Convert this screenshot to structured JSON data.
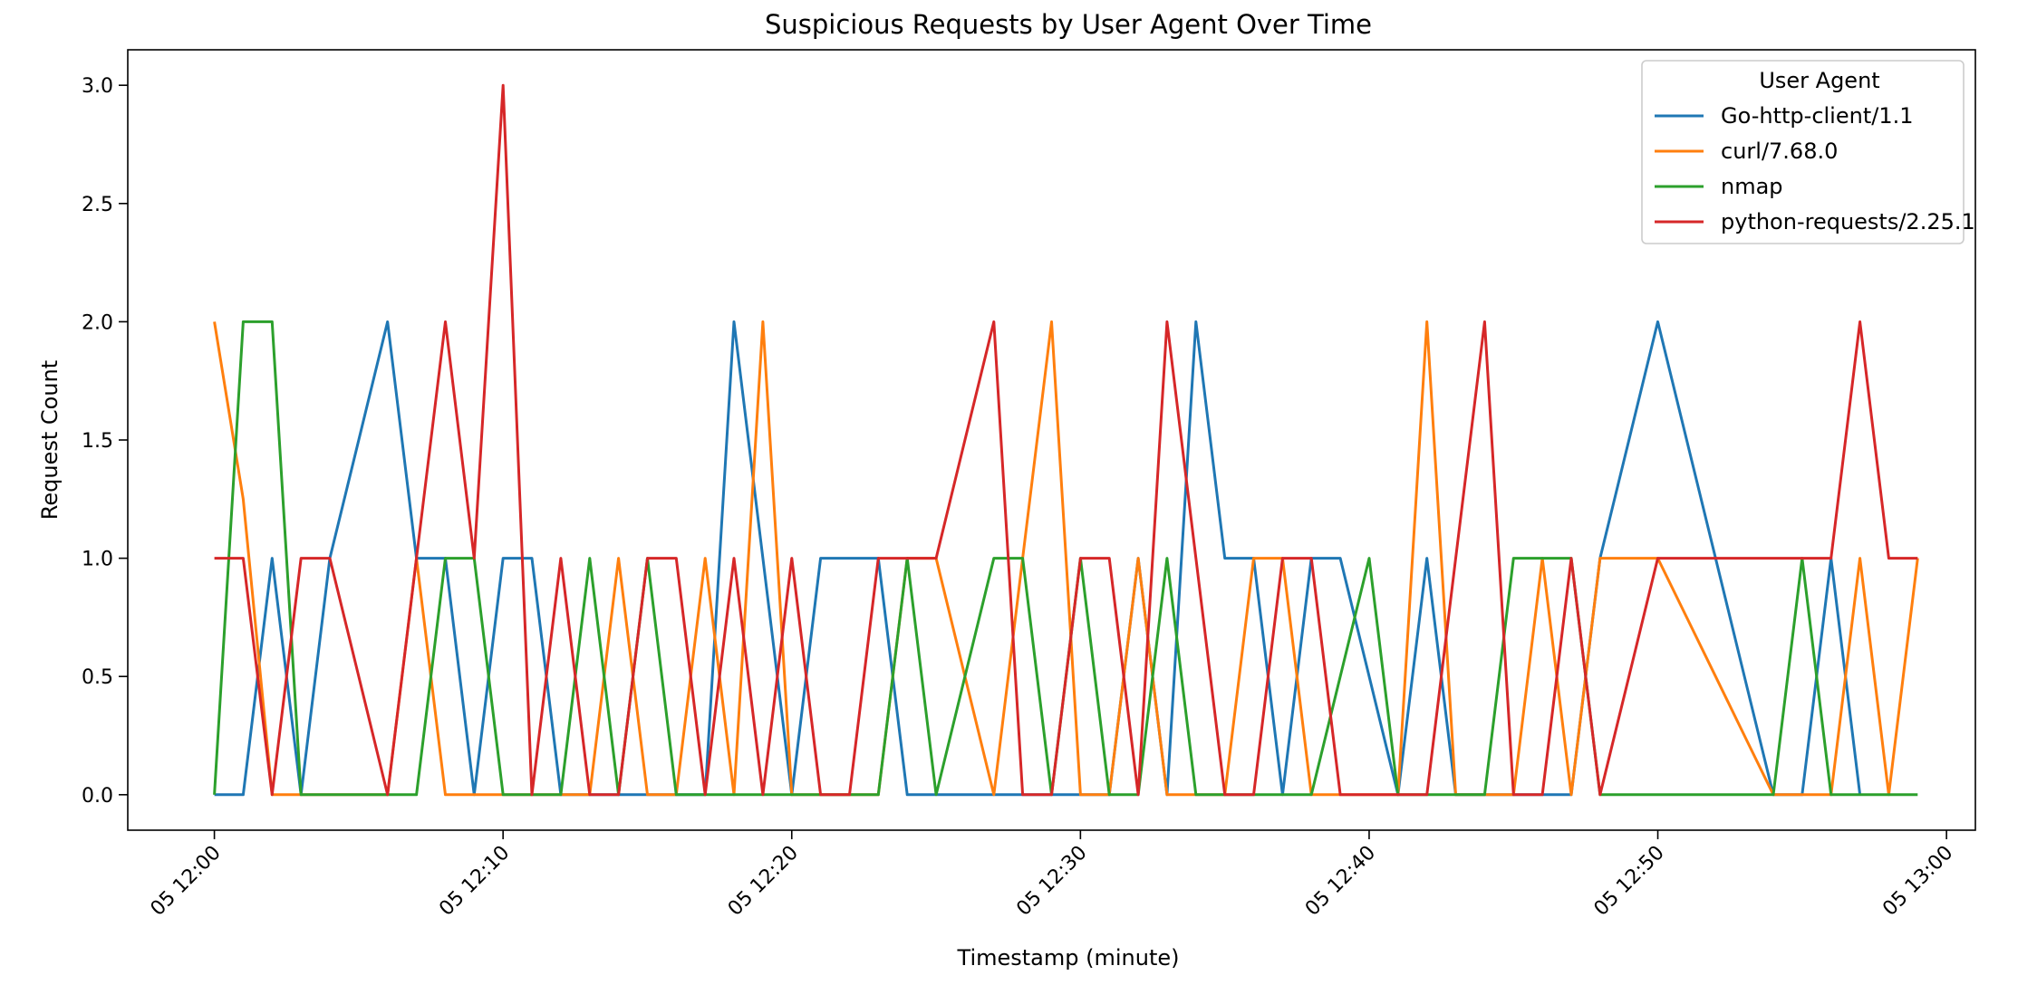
{
  "chart_data": {
    "type": "line",
    "title": "Suspicious Requests by User Agent Over Time",
    "xlabel": "Timestamp (minute)",
    "ylabel": "Request Count",
    "x_unit": "minute",
    "x_start": "05 12:00",
    "x": [
      "05 12:00",
      "05 12:01",
      "05 12:02",
      "05 12:03",
      "05 12:04",
      "05 12:05",
      "05 12:06",
      "05 12:07",
      "05 12:08",
      "05 12:09",
      "05 12:10",
      "05 12:11",
      "05 12:12",
      "05 12:13",
      "05 12:14",
      "05 12:15",
      "05 12:16",
      "05 12:17",
      "05 12:18",
      "05 12:19",
      "05 12:20",
      "05 12:21",
      "05 12:22",
      "05 12:23",
      "05 12:24",
      "05 12:25",
      "05 12:26",
      "05 12:27",
      "05 12:28",
      "05 12:29",
      "05 12:30",
      "05 12:31",
      "05 12:32",
      "05 12:33",
      "05 12:34",
      "05 12:35",
      "05 12:36",
      "05 12:37",
      "05 12:38",
      "05 12:39",
      "05 12:40",
      "05 12:41",
      "05 12:42",
      "05 12:43",
      "05 12:44",
      "05 12:45",
      "05 12:46",
      "05 12:47",
      "05 12:48",
      "05 12:49",
      "05 12:50",
      "05 12:51",
      "05 12:52",
      "05 12:53",
      "05 12:54",
      "05 12:55",
      "05 12:56",
      "05 12:57",
      "05 12:58",
      "05 12:59"
    ],
    "xlim": [
      "05 11:57",
      "05 13:01"
    ],
    "ylim": [
      -0.15,
      3.15
    ],
    "x_ticks": [
      "05 12:00",
      "05 12:10",
      "05 12:20",
      "05 12:30",
      "05 12:40",
      "05 12:50",
      "05 13:00"
    ],
    "y_ticks": [
      "0.0",
      "0.5",
      "1.0",
      "1.5",
      "2.0",
      "2.5",
      "3.0"
    ],
    "grid": false,
    "legend": {
      "title": "User Agent",
      "position": "top-right"
    },
    "series": [
      {
        "name": "Go-http-client/1.1",
        "color": "#1f77b4",
        "values": [
          0,
          0,
          1,
          0,
          1,
          1.5,
          2,
          1,
          1,
          0,
          1,
          1,
          0,
          0,
          0,
          0,
          0,
          0,
          2,
          1,
          0,
          1,
          1,
          1,
          0,
          0,
          0,
          0,
          0,
          0,
          0,
          0,
          1,
          0,
          2,
          1,
          1,
          0,
          1,
          1,
          0.5,
          0,
          1,
          0,
          0,
          0,
          0,
          0,
          1,
          1.5,
          2,
          1.5,
          1,
          0.5,
          0,
          0,
          1,
          0,
          null,
          null
        ]
      },
      {
        "name": "curl/7.68.0",
        "color": "#ff7f0e",
        "values": [
          2,
          1.25,
          0,
          0,
          0,
          0,
          0,
          1,
          0,
          0,
          0,
          0,
          0,
          0,
          1,
          0,
          0,
          1,
          0,
          2,
          0,
          0,
          0,
          0,
          1,
          1,
          0.5,
          0,
          1,
          2,
          0,
          0,
          1,
          0,
          0,
          0,
          1,
          1,
          0,
          0,
          0,
          0,
          2,
          0,
          0,
          0,
          1,
          0,
          1,
          1,
          1,
          0.75,
          0.5,
          0.25,
          0,
          0,
          0,
          1,
          0,
          1
        ]
      },
      {
        "name": "nmap",
        "color": "#2ca02c",
        "values": [
          0,
          2,
          2,
          0,
          0,
          0,
          0,
          0,
          1,
          1,
          0,
          0,
          0,
          1,
          0,
          1,
          0,
          0,
          0,
          0,
          0,
          0,
          0,
          0,
          1,
          0,
          0.5,
          1,
          1,
          0,
          1,
          0,
          0,
          1,
          0,
          0,
          0,
          0,
          0,
          0.5,
          1,
          0,
          0,
          0,
          0,
          1,
          1,
          1,
          0,
          0,
          0,
          0,
          0,
          0,
          0,
          1,
          0,
          0,
          0,
          0
        ]
      },
      {
        "name": "python-requests/2.25.1",
        "color": "#d62728",
        "values": [
          1,
          1,
          0,
          1,
          1,
          0.5,
          0,
          1,
          2,
          1,
          3,
          0,
          1,
          0,
          0,
          1,
          1,
          0,
          1,
          0,
          1,
          0,
          0,
          1,
          1,
          1,
          1.5,
          2,
          0,
          0,
          1,
          1,
          0,
          2,
          1,
          0,
          0,
          1,
          1,
          0,
          0,
          0,
          0,
          1,
          2,
          0,
          0,
          1,
          0,
          0.5,
          1,
          1,
          1,
          1,
          1,
          1,
          1,
          2,
          1,
          1
        ]
      }
    ]
  }
}
